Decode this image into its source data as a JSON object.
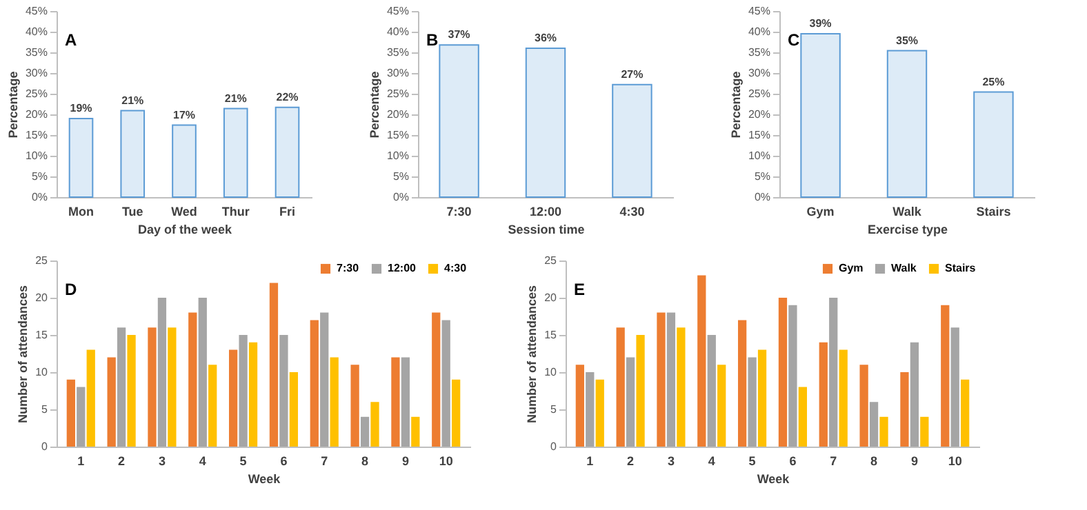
{
  "chart_data": [
    {
      "type": "bar",
      "title": "A",
      "xlabel": "Day of the week",
      "ylabel": "Percentage",
      "categories": [
        "Mon",
        "Tue",
        "Wed",
        "Thur",
        "Fri"
      ],
      "values": [
        19,
        20.9,
        17.4,
        21.4,
        21.7
      ],
      "value_labels": [
        "19%",
        "21%",
        "17%",
        "21%",
        "22%"
      ],
      "color": "#ddebf7",
      "ylim": [
        0,
        45
      ],
      "yticks": [
        {
          "value": 0,
          "label": "0%"
        },
        {
          "value": 5,
          "label": "5%"
        },
        {
          "value": 10,
          "label": "10%"
        },
        {
          "value": 15,
          "label": "15%"
        },
        {
          "value": 20,
          "label": "20%"
        },
        {
          "value": 25,
          "label": "25%"
        },
        {
          "value": 30,
          "label": "30%"
        },
        {
          "value": 35,
          "label": "35%"
        },
        {
          "value": 40,
          "label": "40%"
        },
        {
          "value": 45,
          "label": "45%"
        }
      ],
      "grid": false,
      "legend": false
    },
    {
      "type": "bar",
      "title": "B",
      "xlabel": "Session time",
      "ylabel": "Percentage",
      "categories": [
        "7:30",
        "12:00",
        "4:30"
      ],
      "values": [
        36.8,
        36.0,
        27.2
      ],
      "value_labels": [
        "37%",
        "36%",
        "27%"
      ],
      "color": "#ddebf7",
      "ylim": [
        0,
        45
      ],
      "yticks": [
        {
          "value": 0,
          "label": "0%"
        },
        {
          "value": 5,
          "label": "5%"
        },
        {
          "value": 10,
          "label": "10%"
        },
        {
          "value": 15,
          "label": "15%"
        },
        {
          "value": 20,
          "label": "20%"
        },
        {
          "value": 25,
          "label": "25%"
        },
        {
          "value": 30,
          "label": "30%"
        },
        {
          "value": 35,
          "label": "35%"
        },
        {
          "value": 40,
          "label": "40%"
        },
        {
          "value": 45,
          "label": "45%"
        }
      ],
      "grid": false,
      "legend": false
    },
    {
      "type": "bar",
      "title": "C",
      "xlabel": "Exercise type",
      "ylabel": "Percentage",
      "categories": [
        "Gym",
        "Walk",
        "Stairs"
      ],
      "values": [
        39.5,
        35.4,
        25.4
      ],
      "value_labels": [
        "39%",
        "35%",
        "25%"
      ],
      "color": "#ddebf7",
      "ylim": [
        0,
        45
      ],
      "yticks": [
        {
          "value": 0,
          "label": "0%"
        },
        {
          "value": 5,
          "label": "5%"
        },
        {
          "value": 10,
          "label": "10%"
        },
        {
          "value": 15,
          "label": "15%"
        },
        {
          "value": 20,
          "label": "20%"
        },
        {
          "value": 25,
          "label": "25%"
        },
        {
          "value": 30,
          "label": "30%"
        },
        {
          "value": 35,
          "label": "35%"
        },
        {
          "value": 40,
          "label": "40%"
        },
        {
          "value": 45,
          "label": "45%"
        }
      ],
      "grid": false,
      "legend": false
    },
    {
      "type": "bar",
      "title": "D",
      "xlabel": "Week",
      "ylabel": "Number of attendances",
      "categories": [
        "1",
        "2",
        "3",
        "4",
        "5",
        "6",
        "7",
        "8",
        "9",
        "10"
      ],
      "series": [
        {
          "name": "7:30",
          "color": "#ed7d31",
          "values": [
            9,
            12,
            16,
            18,
            13,
            22,
            17,
            11,
            12,
            18
          ]
        },
        {
          "name": "12:00",
          "color": "#a5a5a5",
          "values": [
            8,
            16,
            20,
            20,
            15,
            15,
            18,
            4,
            12,
            17
          ]
        },
        {
          "name": "4:30",
          "color": "#ffc000",
          "values": [
            13,
            15,
            16,
            11,
            14,
            10,
            12,
            6,
            4,
            9
          ]
        }
      ],
      "ylim": [
        0,
        25
      ],
      "yticks": [
        0,
        5,
        10,
        15,
        20,
        25
      ],
      "grid": false,
      "legend": "top right"
    },
    {
      "type": "bar",
      "title": "E",
      "xlabel": "Week",
      "ylabel": "Number of attendances",
      "categories": [
        "1",
        "2",
        "3",
        "4",
        "5",
        "6",
        "7",
        "8",
        "9",
        "10"
      ],
      "series": [
        {
          "name": "Gym",
          "color": "#ed7d31",
          "values": [
            11,
            16,
            18,
            23,
            17,
            20,
            14,
            11,
            10,
            19
          ]
        },
        {
          "name": "Walk",
          "color": "#a5a5a5",
          "values": [
            10,
            12,
            18,
            15,
            12,
            19,
            20,
            6,
            14,
            16
          ]
        },
        {
          "name": "Stairs",
          "color": "#ffc000",
          "values": [
            9,
            15,
            16,
            11,
            13,
            8,
            13,
            4,
            4,
            9
          ]
        }
      ],
      "ylim": [
        0,
        25
      ],
      "yticks": [
        0,
        5,
        10,
        15,
        20,
        25
      ],
      "grid": false,
      "legend": "top right"
    }
  ]
}
